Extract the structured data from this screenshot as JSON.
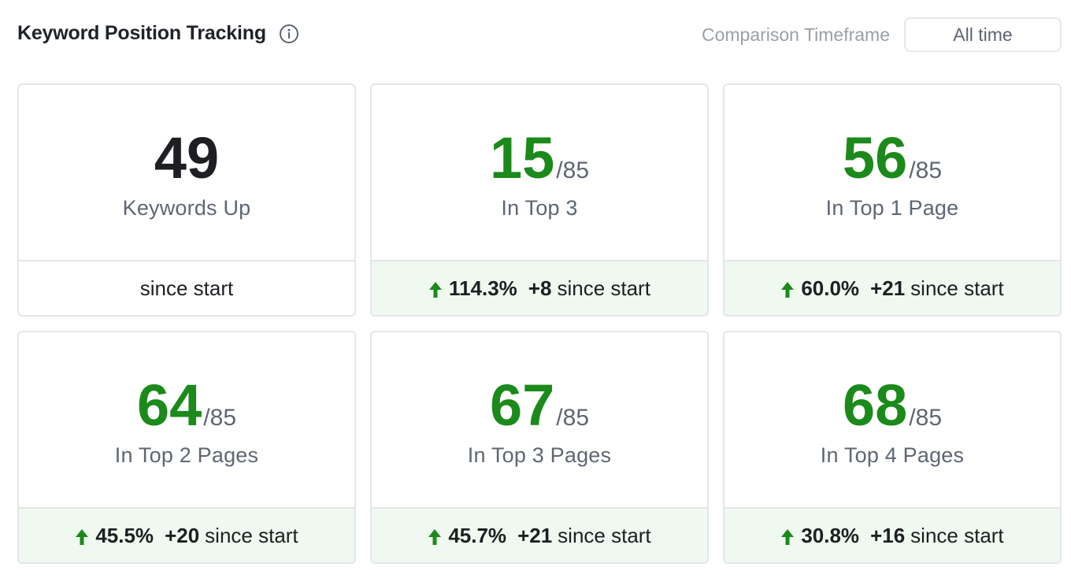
{
  "header": {
    "title": "Keyword Position Tracking",
    "info_icon": "info-circle-icon",
    "timeframe_label": "Comparison Timeframe",
    "timeframe_value": "All time"
  },
  "colors": {
    "positive": "#1b8a1b",
    "positive_tint": "#eff9f0"
  },
  "cards": [
    {
      "value": "49",
      "total": "",
      "label": "Keywords Up",
      "pct": "",
      "delta": "",
      "since": "since start"
    },
    {
      "value": "15",
      "total": "/85",
      "label": "In Top 3",
      "pct": "114.3%",
      "delta": "+8",
      "since": "since start"
    },
    {
      "value": "56",
      "total": "/85",
      "label": "In Top 1 Page",
      "pct": "60.0%",
      "delta": "+21",
      "since": "since start"
    },
    {
      "value": "64",
      "total": "/85",
      "label": "In Top 2 Pages",
      "pct": "45.5%",
      "delta": "+20",
      "since": "since start"
    },
    {
      "value": "67",
      "total": "/85",
      "label": "In Top 3 Pages",
      "pct": "45.7%",
      "delta": "+21",
      "since": "since start"
    },
    {
      "value": "68",
      "total": "/85",
      "label": "In Top 4 Pages",
      "pct": "30.8%",
      "delta": "+16",
      "since": "since start"
    }
  ]
}
